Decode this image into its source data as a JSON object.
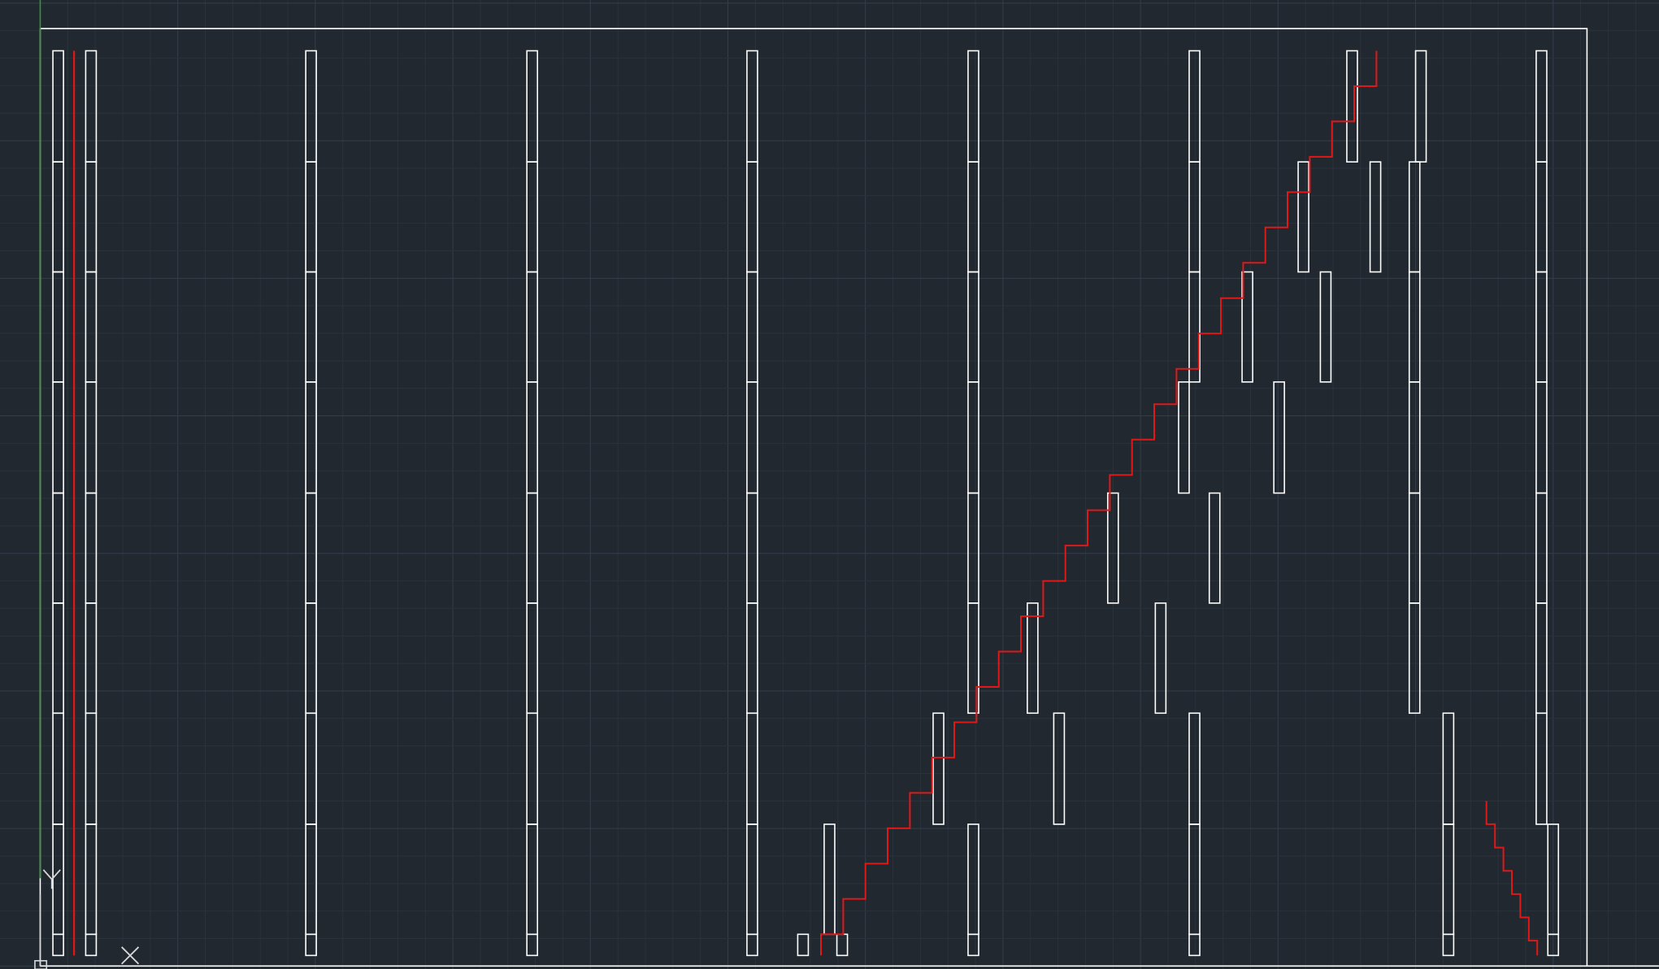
{
  "app": {
    "type": "cad-model-space-viewport"
  },
  "colors": {
    "background": "#212830",
    "grid_minor": "#2a323c",
    "grid_major": "#343e4a",
    "geometry": "#ffffff",
    "annotation_red": "#e01818",
    "y_axis_green": "#2e9b2e",
    "ucs_icon": "#d8d8d8"
  },
  "icons": {
    "ucs": "ucs-icon",
    "y_axis_label": "Y",
    "x_axis_label": "X"
  },
  "drawing": {
    "layers": [
      "border",
      "columns",
      "blocks",
      "red-polylines"
    ],
    "staircase_steps": 25,
    "descending_steps": 6
  }
}
